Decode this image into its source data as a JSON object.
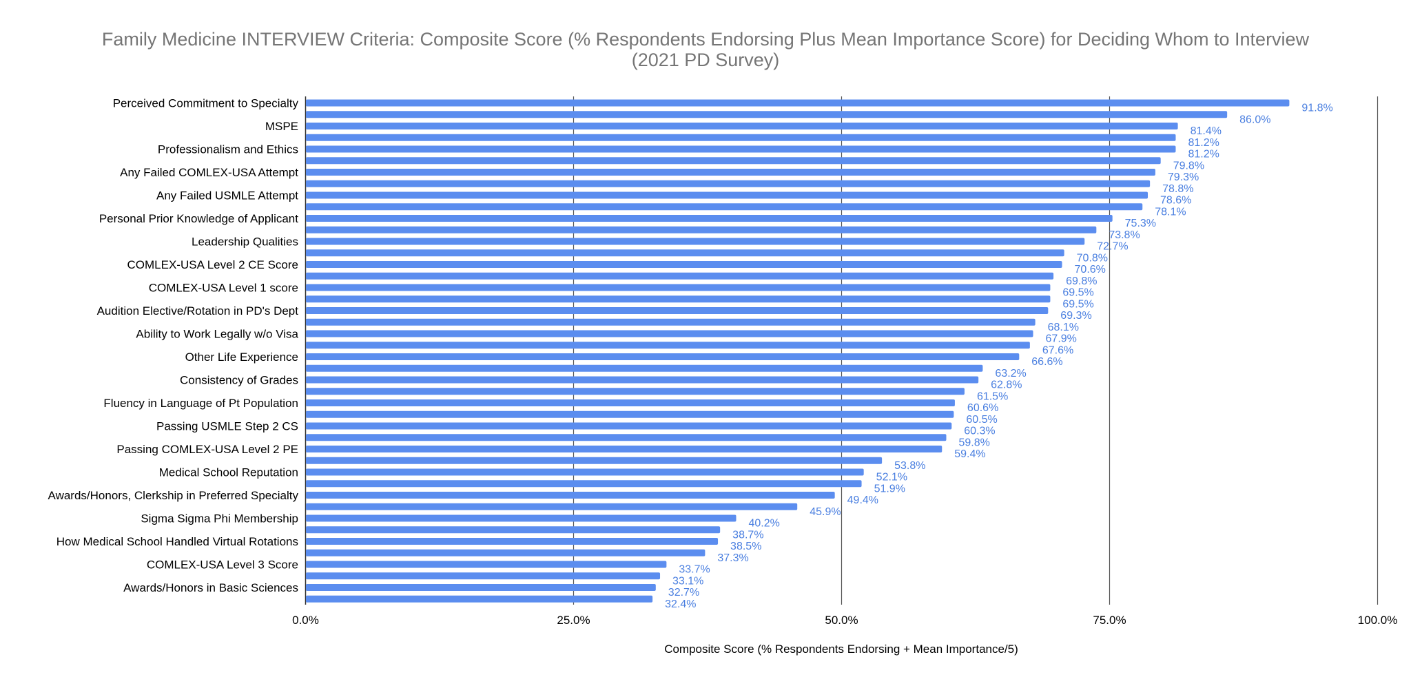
{
  "chart_data": {
    "type": "bar",
    "orientation": "horizontal",
    "title": "Family Medicine INTERVIEW Criteria: Composite Score (% Respondents Endorsing Plus Mean Importance Score) for Deciding Whom to Interview\n(2021 PD Survey)",
    "xlabel": "Composite Score (% Respondents Endorsing + Mean Importance/5)",
    "ylabel": "",
    "xlim": [
      0,
      100
    ],
    "xticks": [
      "0.0%",
      "25.0%",
      "50.0%",
      "75.0%",
      "100.0%"
    ],
    "grid": true,
    "legend": "none",
    "bar_color": "#5b8def",
    "label_color": "#4a7fe0",
    "categories": [
      "Perceived Commitment to Specialty",
      "",
      "MSPE",
      "",
      "Professionalism and Ethics",
      "",
      "Any Failed COMLEX-USA Attempt",
      "",
      "Any Failed USMLE Attempt",
      "",
      "Personal Prior Knowledge of Applicant",
      "",
      "Leadership Qualities",
      "",
      "COMLEX-USA Level 2 CE Score",
      "",
      "COMLEX-USA Level 1 score",
      "",
      "Audition Elective/Rotation in PD's Dept",
      "",
      "Ability to Work Legally w/o Visa",
      "",
      "Other Life Experience",
      "",
      "Consistency of Grades",
      "",
      "Fluency in Language of Pt Population",
      "",
      "Passing USMLE Step 2 CS",
      "",
      "Passing COMLEX-USA Level 2 PE",
      "",
      "Medical School Reputation",
      "",
      "Awards/Honors, Clerkship in Preferred Specialty",
      "",
      "Sigma Sigma Phi Membership",
      "",
      "How Medical School Handled Virtual Rotations",
      "",
      "COMLEX-USA Level 3 Score",
      "",
      "Awards/Honors in Basic Sciences",
      ""
    ],
    "values": [
      91.8,
      86.0,
      81.4,
      81.2,
      81.2,
      79.8,
      79.3,
      78.8,
      78.6,
      78.1,
      75.3,
      73.8,
      72.7,
      70.8,
      70.6,
      69.8,
      69.5,
      69.5,
      69.3,
      68.1,
      67.9,
      67.6,
      66.6,
      63.2,
      62.8,
      61.5,
      60.6,
      60.5,
      60.3,
      59.8,
      59.4,
      53.8,
      52.1,
      51.9,
      49.4,
      45.9,
      40.2,
      38.7,
      38.5,
      37.3,
      33.7,
      33.1,
      32.7,
      32.4
    ],
    "data_labels": [
      "91.8%",
      "86.0%",
      "81.4%",
      "81.2%",
      "81.2%",
      "79.8%",
      "79.3%",
      "78.8%",
      "78.6%",
      "78.1%",
      "75.3%",
      "73.8%",
      "72.7%",
      "70.8%",
      "70.6%",
      "69.8%",
      "69.5%",
      "69.5%",
      "69.3%",
      "68.1%",
      "67.9%",
      "67.6%",
      "66.6%",
      "63.2%",
      "62.8%",
      "61.5%",
      "60.6%",
      "60.5%",
      "60.3%",
      "59.8%",
      "59.4%",
      "53.8%",
      "52.1%",
      "51.9%",
      "49.4%",
      "45.9%",
      "40.2%",
      "38.7%",
      "38.5%",
      "37.3%",
      "33.7%",
      "33.1%",
      "32.7%",
      "32.4%"
    ]
  }
}
